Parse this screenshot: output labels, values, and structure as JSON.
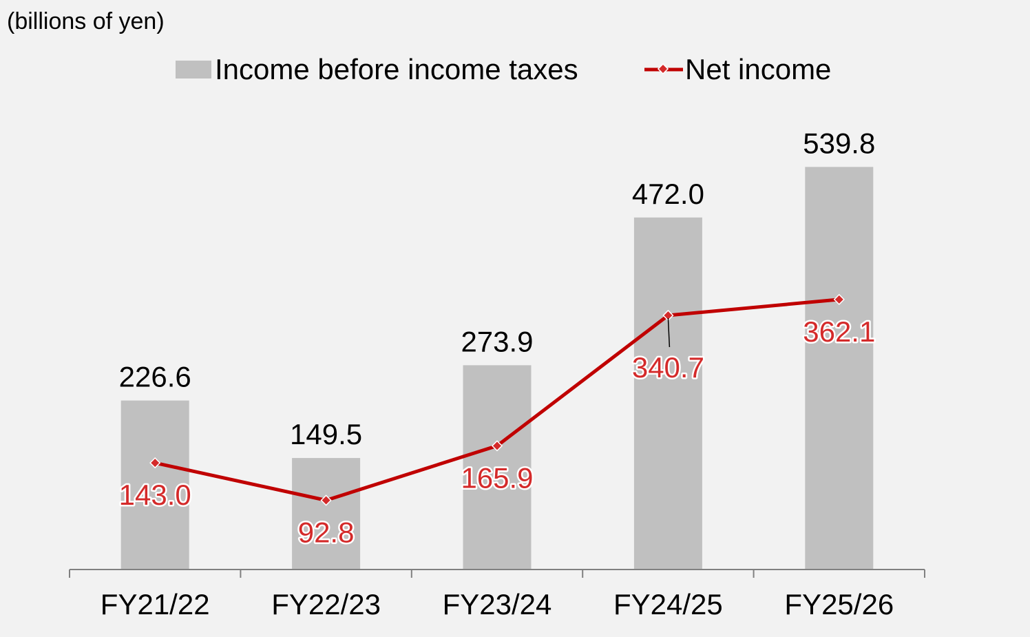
{
  "chart_data": {
    "type": "bar",
    "unit_label": "(billions of yen)",
    "categories": [
      "FY21/22",
      "FY22/23",
      "FY23/24",
      "FY24/25",
      "FY25/26"
    ],
    "series": [
      {
        "name": "Income before income taxes",
        "kind": "bar",
        "color": "#c0c0c0",
        "values": [
          226.6,
          149.5,
          273.9,
          472.0,
          539.8
        ],
        "labels": [
          "226.6",
          "149.5",
          "273.9",
          "472.0",
          "539.8"
        ]
      },
      {
        "name": "Net income",
        "kind": "line",
        "color": "#c00000",
        "label_color": "#d42a2a",
        "values": [
          143.0,
          92.8,
          165.9,
          340.7,
          362.1
        ],
        "labels": [
          "143.0",
          "92.8",
          "165.9",
          "340.7",
          "362.1"
        ]
      }
    ],
    "ylim": [
      0,
      600
    ],
    "grid": false,
    "legend": "top-center"
  }
}
